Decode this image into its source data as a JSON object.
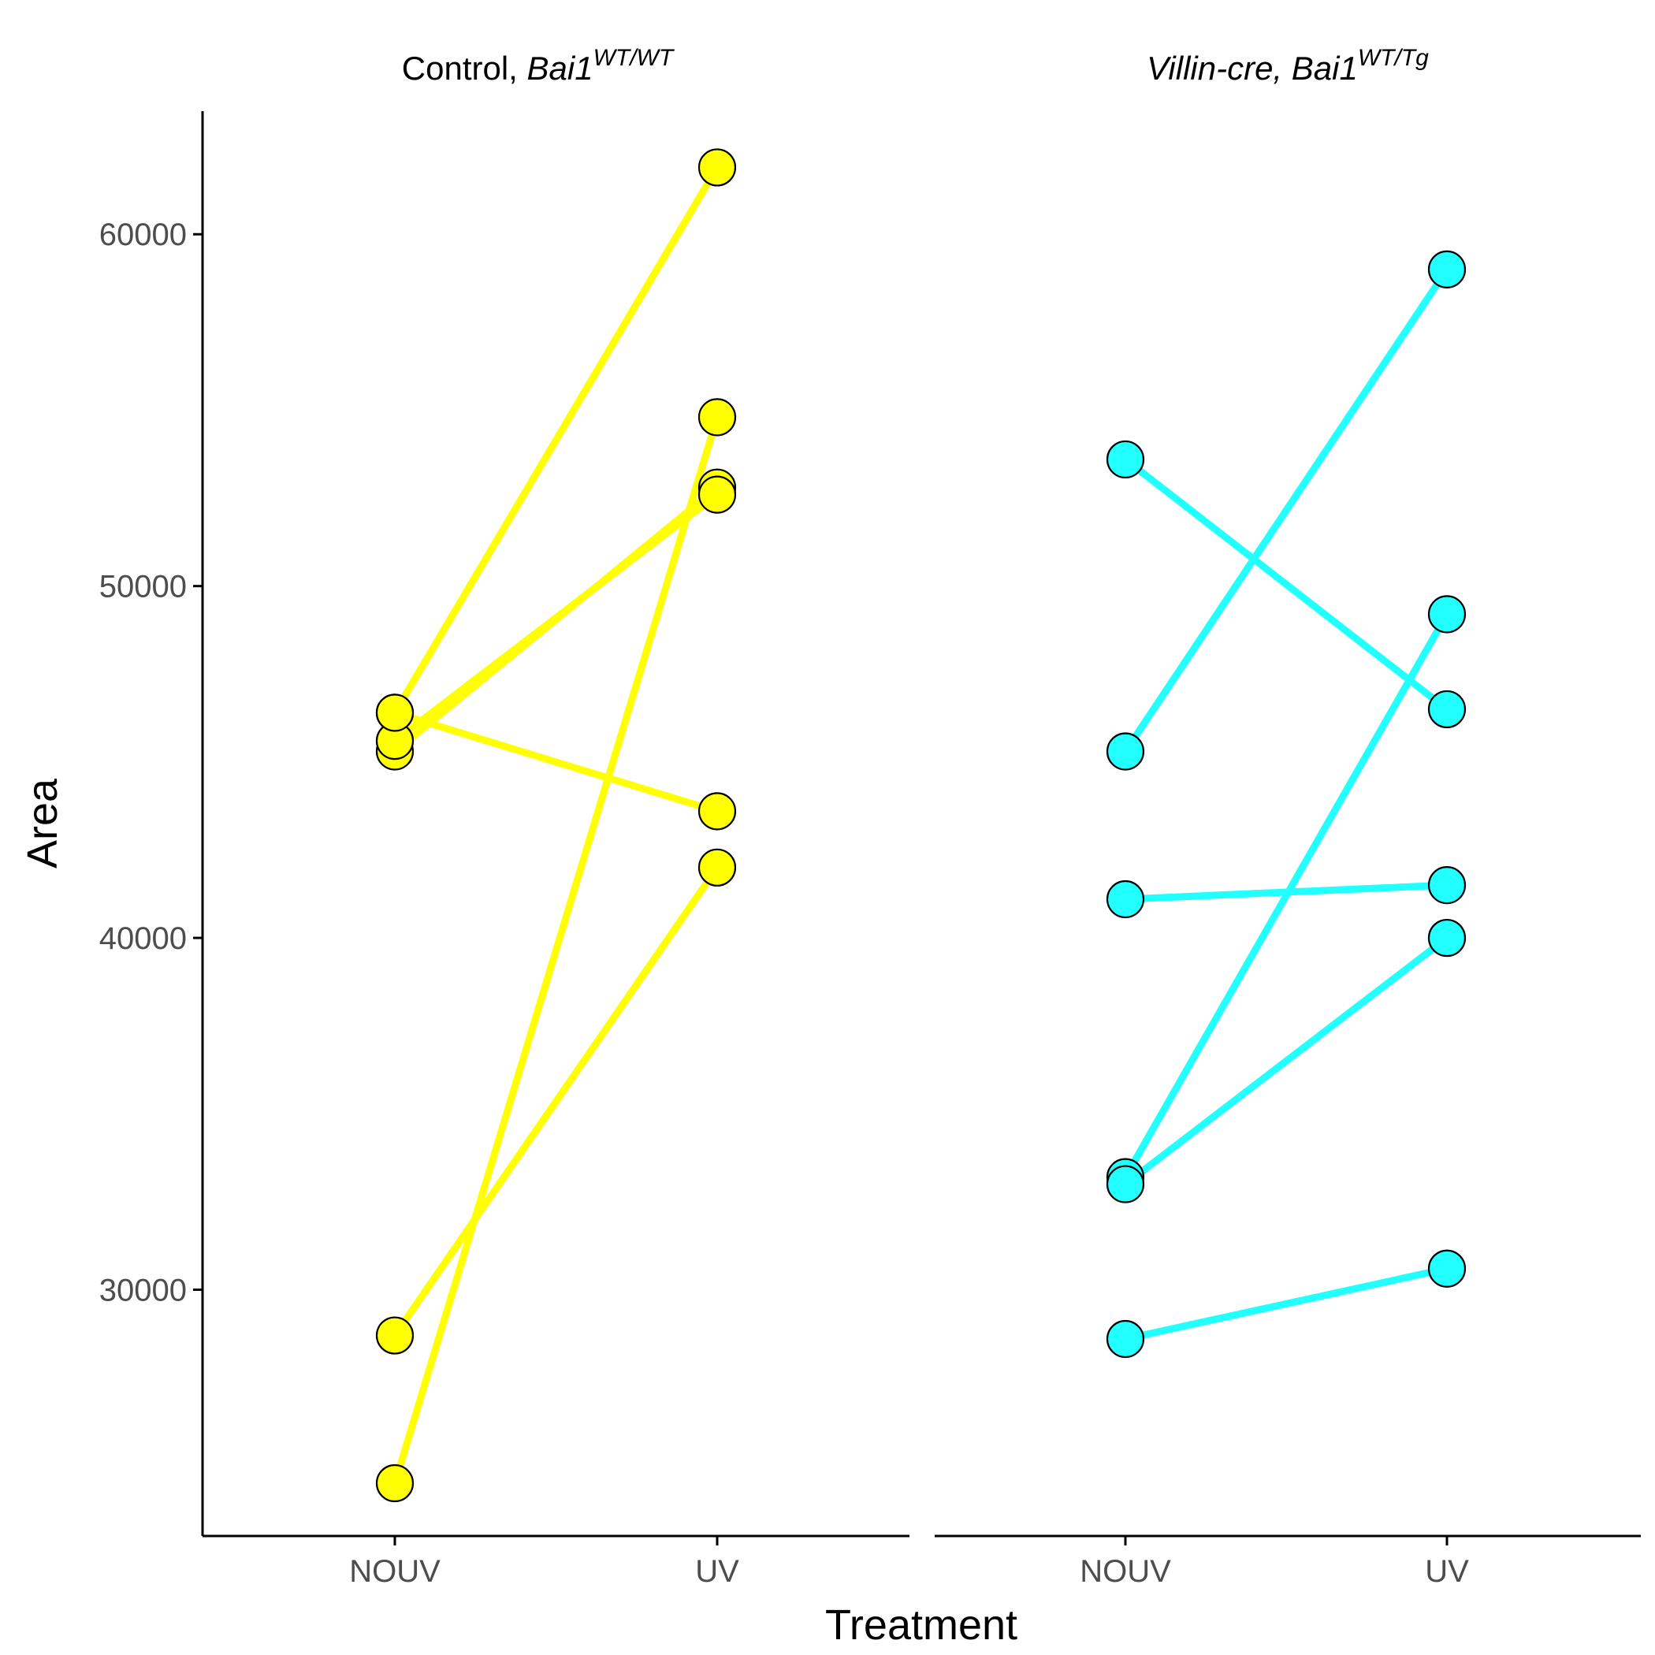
{
  "chart_data": {
    "type": "line",
    "xlabel": "Treatment",
    "ylabel": "Area",
    "categories": [
      "NOUV",
      "UV"
    ],
    "y_ticks": [
      30000,
      40000,
      50000,
      60000
    ],
    "y_tick_labels": [
      "30000",
      "40000",
      "50000",
      "60000"
    ],
    "ylim": [
      23000,
      63500
    ],
    "grid": false,
    "legend": "none",
    "panels": [
      {
        "strip_plain": "Control, ",
        "strip_italic": "Bai1",
        "strip_sup": "WT/WT",
        "color": "#ffff00",
        "pairs": [
          [
            46400,
            61900
          ],
          [
            45300,
            52800
          ],
          [
            45600,
            52600
          ],
          [
            46400,
            43600
          ],
          [
            28700,
            42000
          ],
          [
            24500,
            54800
          ]
        ]
      },
      {
        "strip_plain": "",
        "strip_italic": "Villin-cre, Bai1",
        "strip_sup": "WT/Tg",
        "color": "#22ffff",
        "pairs": [
          [
            53600,
            46500
          ],
          [
            45300,
            59000
          ],
          [
            41100,
            41500
          ],
          [
            33200,
            49200
          ],
          [
            33000,
            40000
          ],
          [
            28600,
            30600
          ]
        ]
      }
    ]
  }
}
